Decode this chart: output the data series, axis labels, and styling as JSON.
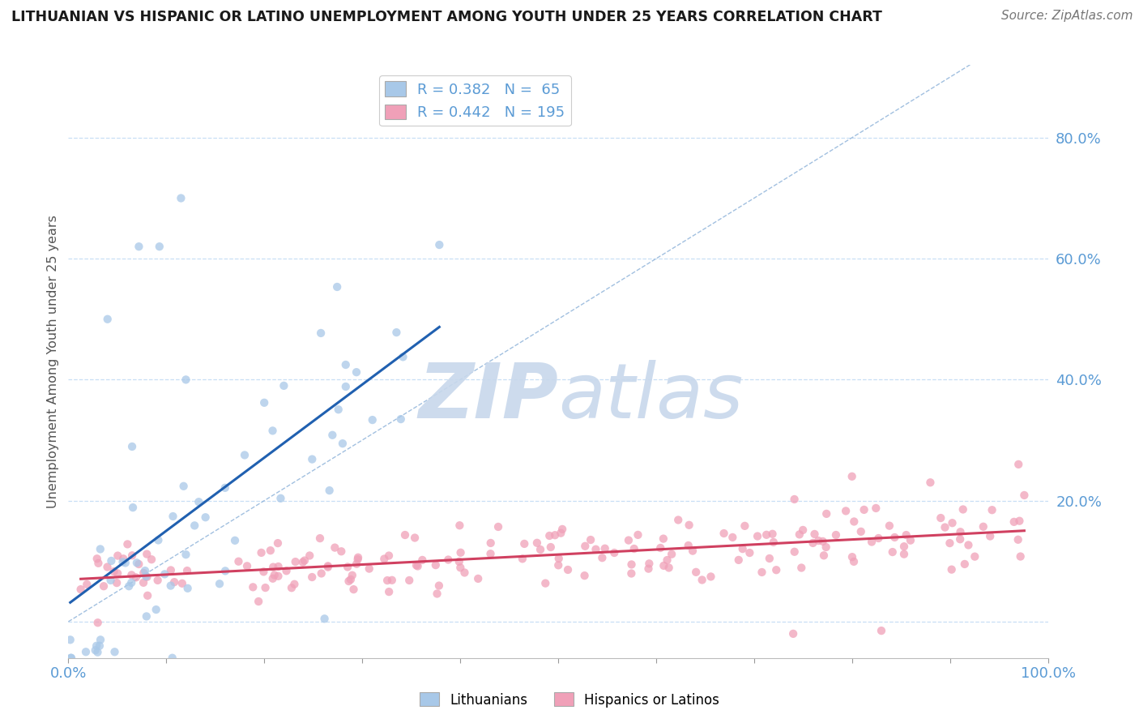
{
  "title": "LITHUANIAN VS HISPANIC OR LATINO UNEMPLOYMENT AMONG YOUTH UNDER 25 YEARS CORRELATION CHART",
  "source": "Source: ZipAtlas.com",
  "ylabel": "Unemployment Among Youth under 25 years",
  "R_lith": 0.382,
  "N_lith": 65,
  "R_hisp": 0.442,
  "N_hisp": 195,
  "blue_color": "#a8c8e8",
  "pink_color": "#f0a0b8",
  "blue_line_color": "#2060b0",
  "pink_line_color": "#d04060",
  "diag_line_color": "#8ab0d8",
  "axis_color": "#5b9bd5",
  "grid_color": "#c8dff5",
  "watermark_zip_color": "#c8d8ec",
  "watermark_atlas_color": "#c8d8ec",
  "legend_labels": [
    "Lithuanians",
    "Hispanics or Latinos"
  ],
  "xlim": [
    0.0,
    1.0
  ],
  "ylim": [
    -0.06,
    0.92
  ],
  "ytick_pos": [
    0.0,
    0.2,
    0.4,
    0.6,
    0.8
  ],
  "ytick_labels": [
    "",
    "20.0%",
    "40.0%",
    "60.0%",
    "80.0%"
  ],
  "xtick_pos": [
    0.0,
    0.1,
    0.2,
    0.3,
    0.4,
    0.5,
    0.6,
    0.7,
    0.8,
    0.9,
    1.0
  ],
  "xtick_labels": [
    "0.0%",
    "",
    "",
    "",
    "",
    "",
    "",
    "",
    "",
    "",
    "100.0%"
  ]
}
